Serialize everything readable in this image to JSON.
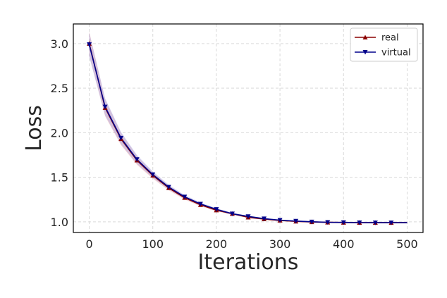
{
  "chart_data": {
    "type": "line",
    "xlabel": "Iterations",
    "ylabel": "Loss",
    "xlim": [
      -25,
      525
    ],
    "ylim": [
      0.88,
      3.22
    ],
    "xticks": [
      0,
      100,
      200,
      300,
      400,
      500
    ],
    "yticks": [
      1.0,
      1.5,
      2.0,
      2.5,
      3.0
    ],
    "grid": true,
    "legend_position": "top-right",
    "x": [
      0,
      25,
      50,
      75,
      100,
      125,
      150,
      175,
      200,
      225,
      250,
      275,
      300,
      325,
      350,
      375,
      400,
      425,
      450,
      475
    ],
    "series": [
      {
        "name": "real",
        "color": "#8b0000",
        "marker": "triangle-up",
        "values": [
          3.0,
          2.28,
          1.93,
          1.69,
          1.52,
          1.38,
          1.27,
          1.19,
          1.13,
          1.09,
          1.05,
          1.03,
          1.015,
          1.005,
          0.998,
          0.994,
          0.992,
          0.991,
          0.99,
          0.99
        ]
      },
      {
        "name": "virtual",
        "color": "#00008b",
        "marker": "triangle-down",
        "values": [
          2.99,
          2.29,
          1.94,
          1.7,
          1.53,
          1.39,
          1.28,
          1.2,
          1.14,
          1.09,
          1.06,
          1.035,
          1.018,
          1.008,
          1.0,
          0.995,
          0.993,
          0.991,
          0.99,
          0.99
        ]
      }
    ],
    "line_end_x": 500,
    "line_end_y": 0.99
  }
}
